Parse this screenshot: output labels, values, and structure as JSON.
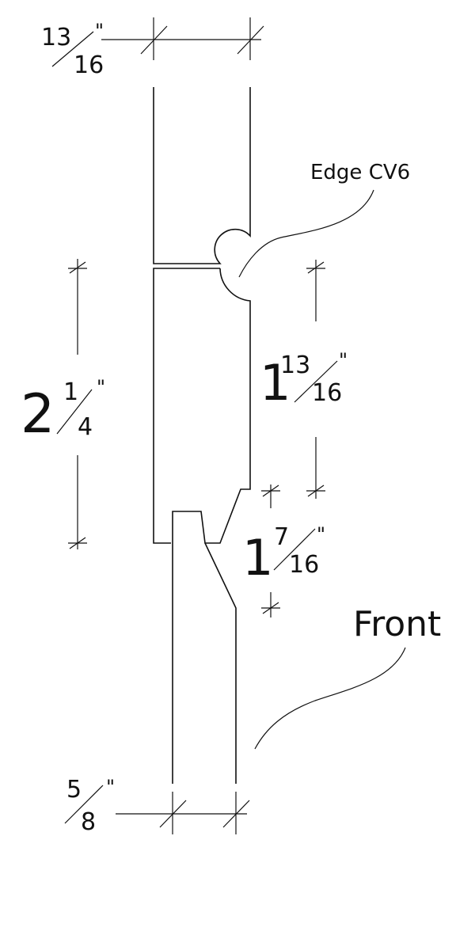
{
  "labels": {
    "edge": "Edge CV6",
    "front": "Front"
  },
  "dimensions": {
    "top_width": {
      "numerator": "13",
      "denominator": "16",
      "unit": "\""
    },
    "bottom_width": {
      "numerator": "5",
      "denominator": "8",
      "unit": "\""
    },
    "left_height": {
      "whole": "2",
      "numerator": "1",
      "denominator": "4",
      "unit": "\""
    },
    "right_upper_height": {
      "whole": "1",
      "numerator": "13",
      "denominator": "16",
      "unit": "\""
    },
    "right_lower_height": {
      "whole": "1",
      "numerator": "7",
      "denominator": "16",
      "unit": "\""
    }
  }
}
